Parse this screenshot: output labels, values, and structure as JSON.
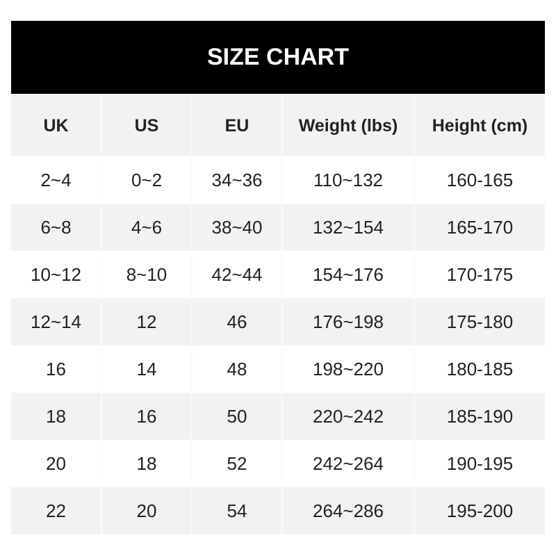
{
  "title": "SIZE CHART",
  "headers": [
    "UK",
    "US",
    "EU",
    "Weight (lbs)",
    "Height (cm)"
  ],
  "rows": [
    [
      "2~4",
      "0~2",
      "34~36",
      "110~132",
      "160-165"
    ],
    [
      "6~8",
      "4~6",
      "38~40",
      "132~154",
      "165-170"
    ],
    [
      "10~12",
      "8~10",
      "42~44",
      "154~176",
      "170-175"
    ],
    [
      "12~14",
      "12",
      "46",
      "176~198",
      "175-180"
    ],
    [
      "16",
      "14",
      "48",
      "198~220",
      "180-185"
    ],
    [
      "18",
      "16",
      "50",
      "220~242",
      "185-190"
    ],
    [
      "20",
      "18",
      "52",
      "242~264",
      "190-195"
    ],
    [
      "22",
      "20",
      "54",
      "264~286",
      "195-200"
    ]
  ],
  "colors": {
    "title_bg": "#000000",
    "header_bg": "#f2f2f2",
    "alt_row_bg": "#f2f2f2"
  }
}
